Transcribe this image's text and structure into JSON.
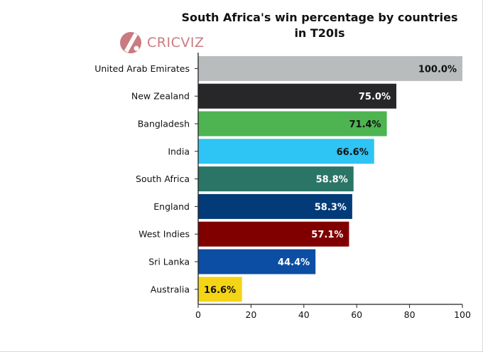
{
  "logo": {
    "text": "CRICVIZ",
    "icon": "cricket-bat-ball-logo"
  },
  "chart_data": {
    "type": "bar",
    "orientation": "horizontal",
    "title": "South Africa's win percentage by countries in T20Is",
    "xlabel": "",
    "ylabel": "",
    "xlim": [
      0,
      100
    ],
    "x_ticks": [
      0,
      20,
      40,
      60,
      80,
      100
    ],
    "grid": false,
    "categories": [
      "United Arab Emirates",
      "New Zealand",
      "Bangladesh",
      "India",
      "South Africa",
      "England",
      "West Indies",
      "Sri Lanka",
      "Australia"
    ],
    "values": [
      100.0,
      75.0,
      71.4,
      66.6,
      58.8,
      58.3,
      57.1,
      44.4,
      16.6
    ],
    "data_labels": [
      "100.0%",
      "75.0%",
      "71.4%",
      "66.6%",
      "58.8%",
      "58.3%",
      "57.1%",
      "44.4%",
      "16.6%"
    ],
    "colors": [
      "#b9bcbd",
      "#272628",
      "#4db451",
      "#2ec4f3",
      "#2b7566",
      "#023b78",
      "#800000",
      "#0b4ea3",
      "#f4d516"
    ],
    "label_colors": [
      "#111111",
      "#ffffff",
      "#111111",
      "#111111",
      "#ffffff",
      "#ffffff",
      "#ffffff",
      "#ffffff",
      "#111111"
    ]
  }
}
